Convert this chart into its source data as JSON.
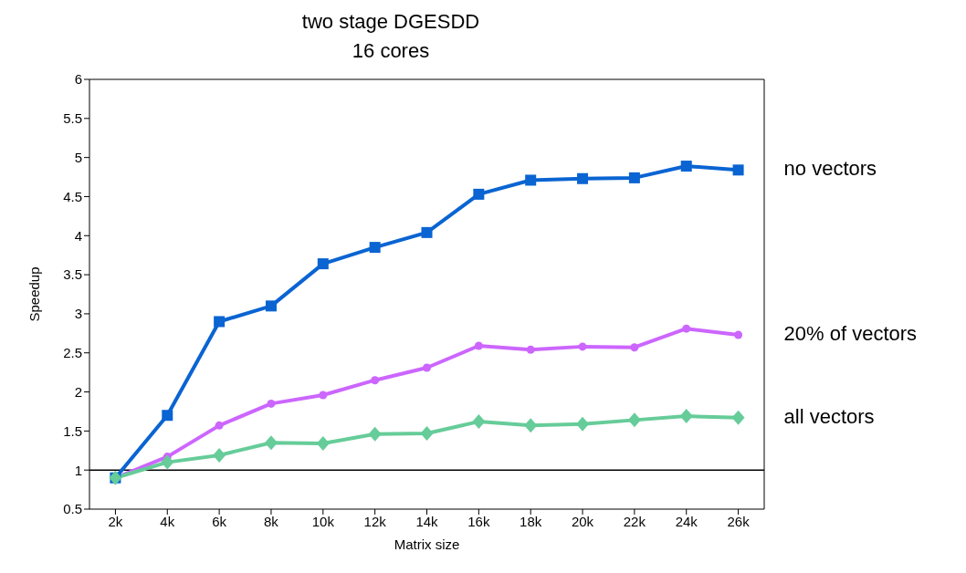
{
  "chart_data": {
    "type": "line",
    "title": "two stage DGESDD",
    "subtitle": "16 cores",
    "xlabel": "Matrix size",
    "ylabel": "Speedup",
    "categories": [
      "2k",
      "4k",
      "6k",
      "8k",
      "10k",
      "12k",
      "14k",
      "16k",
      "18k",
      "20k",
      "22k",
      "24k",
      "26k"
    ],
    "series": [
      {
        "name": "no vectors",
        "color": "#0a64d2",
        "marker": "square",
        "values": [
          0.9,
          1.7,
          2.9,
          3.1,
          3.64,
          3.85,
          4.04,
          4.53,
          4.71,
          4.73,
          4.74,
          4.89,
          4.84
        ]
      },
      {
        "name": "20% of vectors",
        "color": "#cc66ff",
        "marker": "circle",
        "values": [
          0.9,
          1.17,
          1.57,
          1.85,
          1.96,
          2.15,
          2.31,
          2.59,
          2.54,
          2.58,
          2.57,
          2.81,
          2.73
        ]
      },
      {
        "name": "all vectors",
        "color": "#66cc99",
        "marker": "diamond",
        "values": [
          0.9,
          1.1,
          1.19,
          1.35,
          1.34,
          1.46,
          1.47,
          1.62,
          1.57,
          1.59,
          1.64,
          1.69,
          1.67
        ]
      }
    ],
    "ylim": [
      0.5,
      6
    ],
    "yticks": [
      0.5,
      1,
      1.5,
      2,
      2.5,
      3,
      3.5,
      4,
      4.5,
      5,
      5.5,
      6
    ],
    "ref_lines": [
      {
        "axis": "y",
        "value": 1,
        "color": "#000000"
      }
    ],
    "grid": false,
    "legend": false,
    "line_style": "solid"
  }
}
